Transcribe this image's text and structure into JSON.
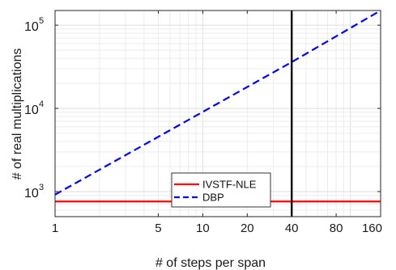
{
  "chart_data": {
    "type": "line",
    "xscale": "log",
    "yscale": "log",
    "xlim": [
      1,
      160
    ],
    "ylim": [
      500,
      150000
    ],
    "x_ticks": [
      1,
      5,
      10,
      20,
      40,
      80,
      160
    ],
    "x_tick_labels": [
      "1",
      "5",
      "10",
      "20",
      "40",
      "80",
      "160"
    ],
    "y_ticks": [
      1000,
      10000,
      100000
    ],
    "y_tick_labels": [
      {
        "base": "10",
        "exp": "3"
      },
      {
        "base": "10",
        "exp": "4"
      },
      {
        "base": "10",
        "exp": "5"
      }
    ],
    "xlabel": "# of steps per span",
    "ylabel": "# of real multiplications",
    "grid": true,
    "legend_position": "lower-center",
    "series": [
      {
        "name": "IVSTF-NLE",
        "color": "#ff0000",
        "style": "solid",
        "x": [
          1,
          160
        ],
        "y": [
          760,
          760
        ]
      },
      {
        "name": "DBP",
        "color": "#0000ff",
        "style": "dashed",
        "x": [
          1,
          40,
          160
        ],
        "y": [
          920,
          36000,
          150000
        ]
      }
    ],
    "vertical_marker": {
      "x": 40,
      "color": "#000000"
    }
  }
}
